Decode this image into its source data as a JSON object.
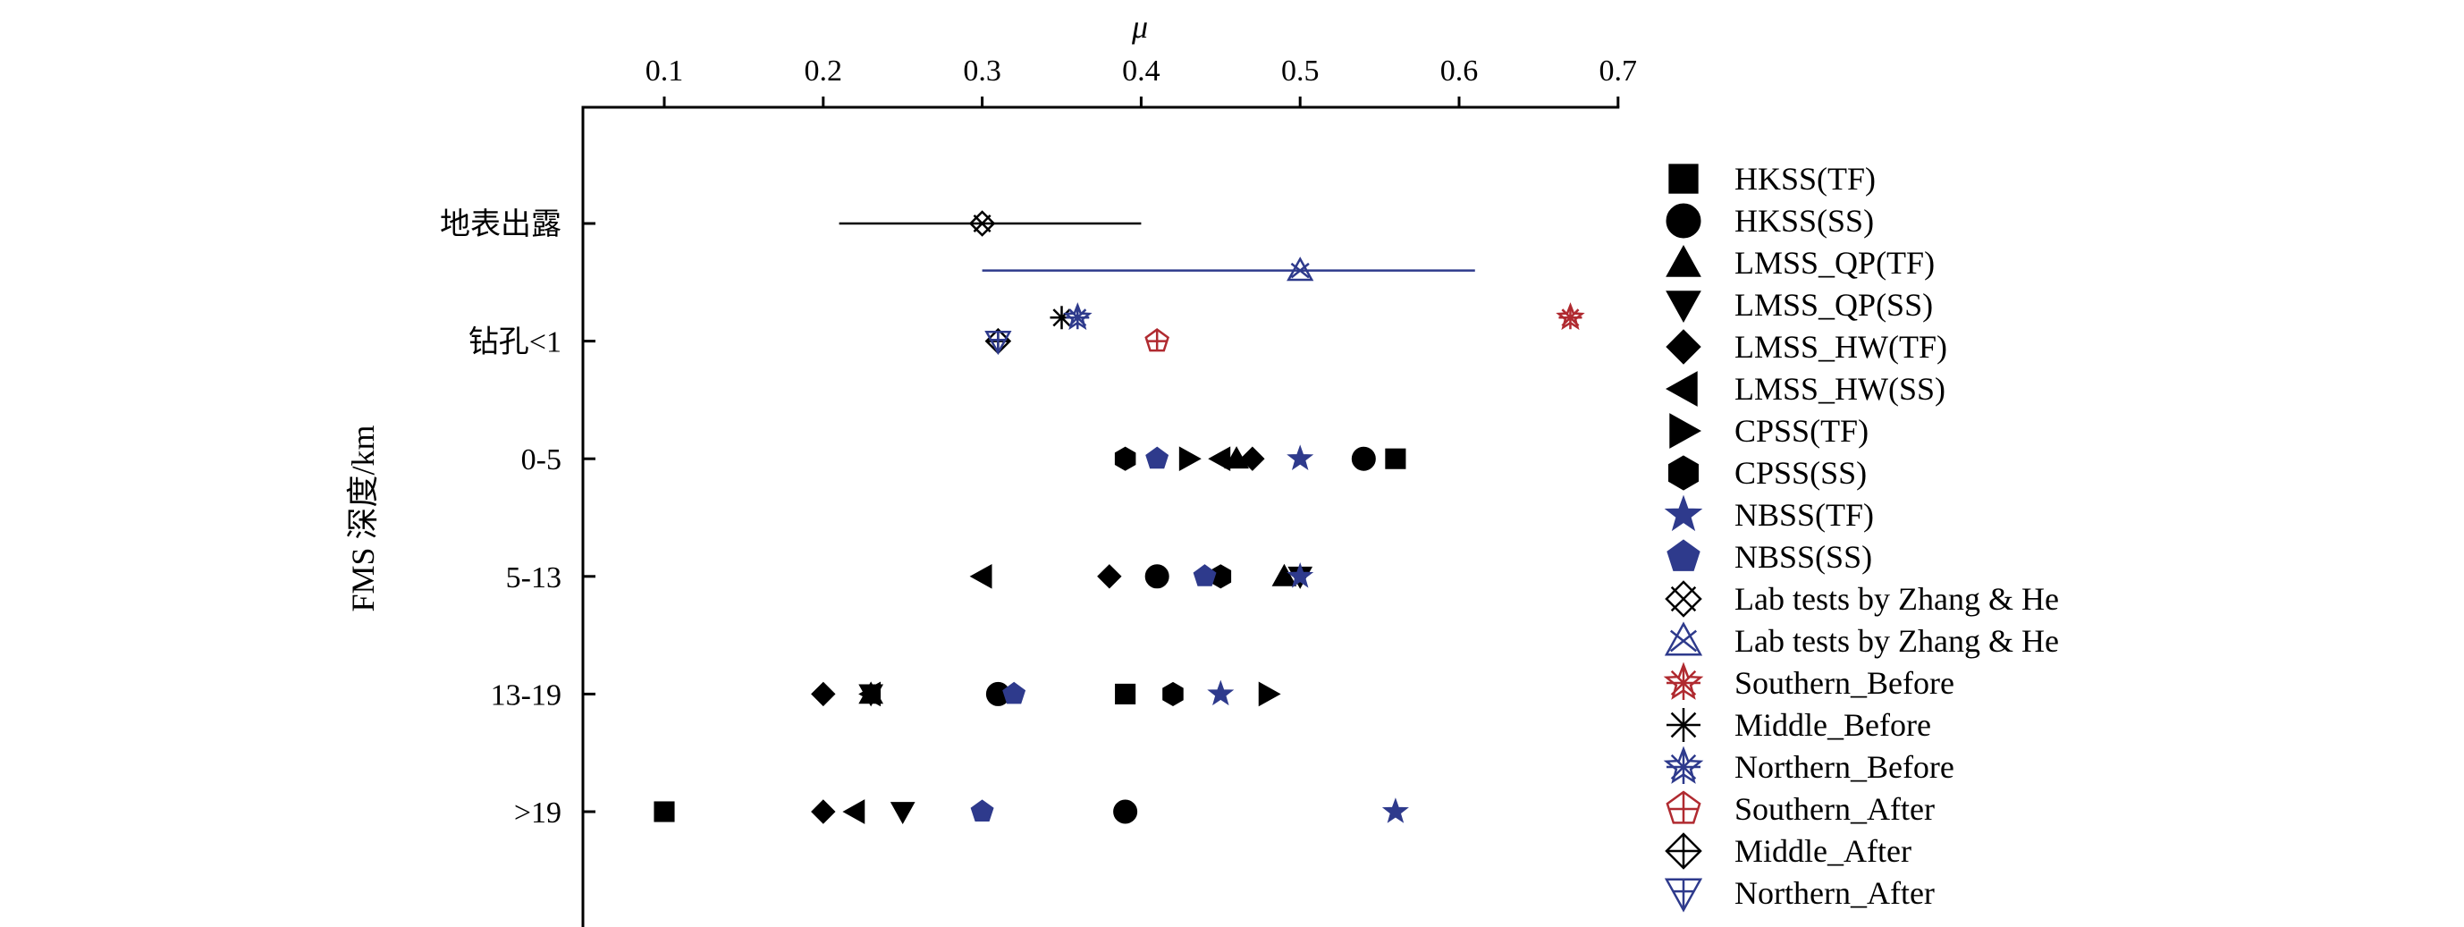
{
  "chart_data": {
    "type": "scatter",
    "xlabel": "μ",
    "ylabel": "FMS 深度/km",
    "xlim": [
      0.05,
      0.7
    ],
    "x_ticks": [
      "0.1",
      "0.2",
      "0.3",
      "0.4",
      "0.5",
      "0.6",
      "0.7"
    ],
    "x_axis_position": "top",
    "categories": [
      "地表出露",
      "钻孔<1",
      "0-5",
      "5-13",
      "13-19",
      ">19"
    ],
    "legend_position": "right",
    "series": [
      {
        "name": "HKSS(TF)",
        "marker": "square",
        "color": "#000000",
        "points": [
          {
            "category": "0-5",
            "x": 0.56
          },
          {
            "category": "13-19",
            "x": 0.39
          },
          {
            "category": ">19",
            "x": 0.1
          }
        ]
      },
      {
        "name": "HKSS(SS)",
        "marker": "circle",
        "color": "#000000",
        "points": [
          {
            "category": "0-5",
            "x": 0.54
          },
          {
            "category": "5-13",
            "x": 0.41
          },
          {
            "category": "13-19",
            "x": 0.31
          },
          {
            "category": ">19",
            "x": 0.39
          }
        ]
      },
      {
        "name": "LMSS_QP(TF)",
        "marker": "triangle-up",
        "color": "#000000",
        "points": [
          {
            "category": "0-5",
            "x": 0.46
          },
          {
            "category": "5-13",
            "x": 0.49
          },
          {
            "category": "13-19",
            "x": 0.23
          }
        ]
      },
      {
        "name": "LMSS_QP(SS)",
        "marker": "triangle-down",
        "color": "#000000",
        "points": [
          {
            "category": "5-13",
            "x": 0.5
          },
          {
            "category": "13-19",
            "x": 0.23
          },
          {
            "category": ">19",
            "x": 0.25
          }
        ]
      },
      {
        "name": "LMSS_HW(TF)",
        "marker": "diamond",
        "color": "#000000",
        "points": [
          {
            "category": "0-5",
            "x": 0.47
          },
          {
            "category": "5-13",
            "x": 0.38
          },
          {
            "category": "13-19",
            "x": 0.2
          },
          {
            "category": ">19",
            "x": 0.2
          }
        ]
      },
      {
        "name": "LMSS_HW(SS)",
        "marker": "triangle-left",
        "color": "#000000",
        "points": [
          {
            "category": "0-5",
            "x": 0.45
          },
          {
            "category": "5-13",
            "x": 0.3
          },
          {
            "category": "13-19",
            "x": 0.23
          },
          {
            "category": ">19",
            "x": 0.22
          }
        ]
      },
      {
        "name": "CPSS(TF)",
        "marker": "triangle-right",
        "color": "#000000",
        "points": [
          {
            "category": "0-5",
            "x": 0.43
          },
          {
            "category": "13-19",
            "x": 0.48
          }
        ]
      },
      {
        "name": "CPSS(SS)",
        "marker": "hexagon",
        "color": "#000000",
        "points": [
          {
            "category": "0-5",
            "x": 0.39
          },
          {
            "category": "5-13",
            "x": 0.45
          },
          {
            "category": "13-19",
            "x": 0.42
          }
        ]
      },
      {
        "name": "NBSS(TF)",
        "marker": "star",
        "color": "#2e3a8c",
        "points": [
          {
            "category": "0-5",
            "x": 0.5
          },
          {
            "category": "5-13",
            "x": 0.5
          },
          {
            "category": "13-19",
            "x": 0.45
          },
          {
            "category": ">19",
            "x": 0.56
          }
        ]
      },
      {
        "name": "NBSS(SS)",
        "marker": "pentagon",
        "color": "#2e3a8c",
        "points": [
          {
            "category": "0-5",
            "x": 0.41
          },
          {
            "category": "5-13",
            "x": 0.44
          },
          {
            "category": "13-19",
            "x": 0.32
          },
          {
            "category": ">19",
            "x": 0.3
          }
        ]
      },
      {
        "name": "Lab tests by Zhang & He",
        "marker": "x-diamond",
        "color": "#000000",
        "points": [
          {
            "category": "地表出露",
            "x": 0.3,
            "xmin": 0.21,
            "xmax": 0.4
          }
        ]
      },
      {
        "name": "Lab tests by Zhang & He",
        "marker": "x-triangle",
        "color": "#2e3a8c",
        "points": [
          {
            "category": "地表出露",
            "x": 0.5,
            "xmin": 0.3,
            "xmax": 0.61,
            "offset": 0.4
          }
        ]
      },
      {
        "name": "Southern_Before",
        "marker": "asterisk-star",
        "color": "#b02a30",
        "points": [
          {
            "category": "钻孔<1",
            "x": 0.67,
            "offset": -0.2
          }
        ]
      },
      {
        "name": "Middle_Before",
        "marker": "asterisk",
        "color": "#000000",
        "points": [
          {
            "category": "钻孔<1",
            "x": 0.35,
            "offset": -0.2
          }
        ]
      },
      {
        "name": "Northern_Before",
        "marker": "asterisk-star",
        "color": "#2e3a8c",
        "points": [
          {
            "category": "钻孔<1",
            "x": 0.36,
            "offset": -0.2
          }
        ]
      },
      {
        "name": "Southern_After",
        "marker": "pentagon-plus",
        "color": "#b02a30",
        "points": [
          {
            "category": "钻孔<1",
            "x": 0.41
          }
        ]
      },
      {
        "name": "Middle_After",
        "marker": "diamond-plus",
        "color": "#000000",
        "points": [
          {
            "category": "钻孔<1",
            "x": 0.31
          }
        ]
      },
      {
        "name": "Northern_After",
        "marker": "triangle-down-plus",
        "color": "#2e3a8c",
        "points": [
          {
            "category": "钻孔<1",
            "x": 0.31
          }
        ]
      }
    ]
  }
}
